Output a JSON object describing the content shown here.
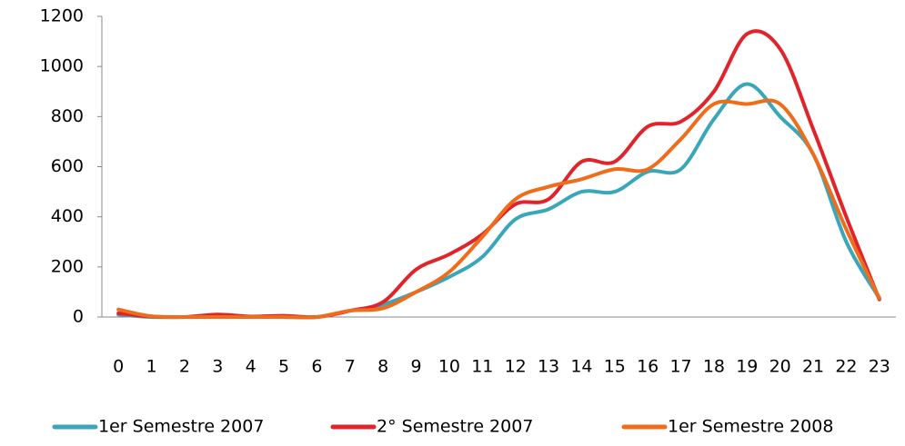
{
  "chart_data": {
    "type": "line",
    "categories": [
      "0",
      "1",
      "2",
      "3",
      "4",
      "5",
      "6",
      "7",
      "8",
      "9",
      "10",
      "11",
      "12",
      "13",
      "14",
      "15",
      "16",
      "17",
      "18",
      "19",
      "20",
      "21",
      "22",
      "23"
    ],
    "series": [
      {
        "name": "1er Semestre 2007",
        "color": "#3aa6b9",
        "values": [
          10,
          0,
          0,
          0,
          0,
          0,
          0,
          25,
          50,
          100,
          160,
          240,
          390,
          430,
          500,
          500,
          580,
          590,
          790,
          930,
          800,
          650,
          300,
          75
        ]
      },
      {
        "name": "2° Semestre 2007",
        "color": "#e0242b",
        "values": [
          15,
          2,
          0,
          10,
          2,
          5,
          0,
          25,
          60,
          190,
          250,
          330,
          450,
          470,
          620,
          620,
          760,
          780,
          900,
          1130,
          1070,
          750,
          400,
          70
        ]
      },
      {
        "name": "1er Semestre 2008",
        "color": "#ef6c1a",
        "values": [
          30,
          3,
          0,
          0,
          0,
          0,
          0,
          25,
          35,
          100,
          180,
          320,
          470,
          520,
          550,
          590,
          590,
          710,
          850,
          850,
          850,
          650,
          350,
          75
        ]
      }
    ],
    "ylim": [
      0,
      1200
    ],
    "yticks": [
      0,
      200,
      400,
      600,
      800,
      1000,
      1200
    ],
    "smooth": true
  }
}
